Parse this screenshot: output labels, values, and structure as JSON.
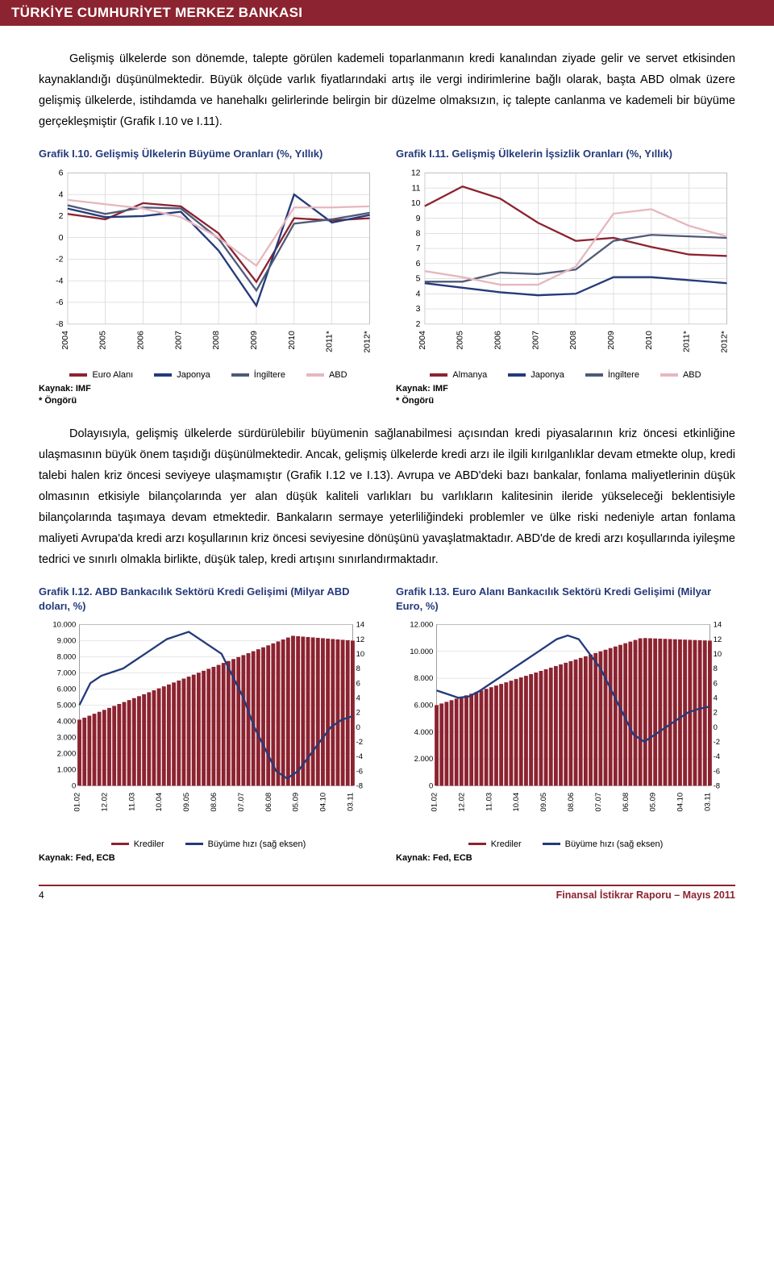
{
  "header": {
    "title": "TÜRKİYE CUMHURİYET MERKEZ BANKASI"
  },
  "paragraphs": {
    "p1": "Gelişmiş ülkelerde son dönemde, talepte görülen kademeli toparlanmanın kredi kanalından ziyade gelir ve servet etkisinden kaynaklandığı düşünülmektedir. Büyük ölçüde varlık fiyatlarındaki artış ile vergi indirimlerine bağlı olarak, başta ABD olmak üzere gelişmiş ülkelerde, istihdamda ve hanehalkı gelirlerinde belirgin bir düzelme olmaksızın, iç talepte canlanma ve kademeli bir büyüme gerçekleşmiştir (Grafik I.10 ve I.11).",
    "p2": "Dolayısıyla, gelişmiş ülkelerde sürdürülebilir büyümenin sağlanabilmesi açısından kredi piyasalarının kriz öncesi etkinliğine ulaşmasının büyük önem taşıdığı düşünülmektedir. Ancak, gelişmiş ülkelerde kredi arzı ile ilgili kırılganlıklar devam etmekte olup, kredi talebi halen kriz öncesi seviyeye ulaşmamıştır (Grafik I.12 ve I.13). Avrupa ve ABD'deki bazı bankalar, fonlama maliyetlerinin düşük olmasının etkisiyle bilançolarında yer alan düşük kaliteli varlıkları bu varlıkların kalitesinin ileride yükseleceği beklentisiyle bilançolarında taşımaya devam etmektedir. Bankaların sermaye yeterliliğindeki problemler ve ülke riski nedeniyle artan fonlama maliyeti Avrupa'da kredi arzı koşullarının kriz öncesi seviyesine dönüşünü yavaşlatmaktadır. ABD'de de kredi arzı koşullarında iyileşme tedrici ve sınırlı olmakla birlikte, düşük talep, kredi artışını sınırlandırmaktadır."
  },
  "chart10": {
    "title": "Grafik I.10. Gelişmiş Ülkelerin Büyüme Oranları (%, Yıllık)",
    "type": "line",
    "x_labels": [
      "2004",
      "2005",
      "2006",
      "2007",
      "2008",
      "2009",
      "2010",
      "2011*",
      "2012*"
    ],
    "ylim": [
      -8,
      6
    ],
    "ytick_step": 2,
    "series": {
      "euro": {
        "label": "Euro Alanı",
        "color": "#8c2330",
        "values": [
          2.2,
          1.7,
          3.2,
          2.9,
          0.4,
          -4.1,
          1.8,
          1.6,
          1.8
        ]
      },
      "japan": {
        "label": "Japonya",
        "color": "#243a7a",
        "values": [
          2.7,
          1.9,
          2.0,
          2.4,
          -1.2,
          -6.3,
          4.0,
          1.4,
          2.1
        ]
      },
      "uk": {
        "label": "İngiltere",
        "color": "#4f5a78",
        "values": [
          3.0,
          2.2,
          2.8,
          2.7,
          -0.1,
          -4.9,
          1.3,
          1.7,
          2.3
        ]
      },
      "usa": {
        "label": "ABD",
        "color": "#e6b7bf",
        "values": [
          3.5,
          3.1,
          2.7,
          1.9,
          0.0,
          -2.6,
          2.8,
          2.8,
          2.9
        ]
      }
    },
    "legend_order": [
      "euro",
      "japan",
      "uk",
      "usa"
    ],
    "source": "Kaynak: IMF",
    "note": "* Öngörü",
    "background_color": "#ffffff",
    "grid_color": "#cfcfcf",
    "axis_fontsize": 10
  },
  "chart11": {
    "title": "Grafik I.11. Gelişmiş Ülkelerin İşsizlik Oranları (%, Yıllık)",
    "type": "line",
    "x_labels": [
      "2004",
      "2005",
      "2006",
      "2007",
      "2008",
      "2009",
      "2010",
      "2011*",
      "2012*"
    ],
    "ylim": [
      2,
      12
    ],
    "ytick_step": 1,
    "series": {
      "germany": {
        "label": "Almanya",
        "color": "#8c2330",
        "values": [
          9.8,
          11.1,
          10.3,
          8.7,
          7.5,
          7.7,
          7.1,
          6.6,
          6.5
        ]
      },
      "japan": {
        "label": "Japonya",
        "color": "#243a7a",
        "values": [
          4.7,
          4.4,
          4.1,
          3.9,
          4.0,
          5.1,
          5.1,
          4.9,
          4.7
        ]
      },
      "uk": {
        "label": "İngiltere",
        "color": "#4f5a78",
        "values": [
          4.8,
          4.8,
          5.4,
          5.3,
          5.6,
          7.5,
          7.9,
          7.8,
          7.7
        ]
      },
      "usa": {
        "label": "ABD",
        "color": "#e6b7bf",
        "values": [
          5.5,
          5.1,
          4.6,
          4.6,
          5.8,
          9.3,
          9.6,
          8.5,
          7.8
        ]
      }
    },
    "legend_order": [
      "germany",
      "japan",
      "uk",
      "usa"
    ],
    "source": "Kaynak: IMF",
    "note": "* Öngörü",
    "background_color": "#ffffff",
    "grid_color": "#cfcfcf",
    "axis_fontsize": 10
  },
  "chart12": {
    "title": "Grafik I.12. ABD Bankacılık Sektörü Kredi Gelişimi (Milyar ABD doları, %)",
    "type": "bar-line",
    "x_labels": [
      "01.02",
      "12.02",
      "11.03",
      "10.04",
      "09.05",
      "08.06",
      "07.07",
      "06.08",
      "05.09",
      "04.10",
      "03.11"
    ],
    "yL": {
      "lim": [
        0,
        10000
      ],
      "ticks": [
        0,
        1000,
        2000,
        3000,
        4000,
        5000,
        6000,
        7000,
        8000,
        9000,
        10000
      ],
      "tick_labels": [
        "0",
        "1.000",
        "2.000",
        "3.000",
        "4.000",
        "5.000",
        "6.000",
        "7.000",
        "8.000",
        "9.000",
        "10.000"
      ]
    },
    "yR": {
      "lim": [
        -8,
        14
      ],
      "ticks": [
        -8,
        -6,
        -4,
        -2,
        0,
        2,
        4,
        6,
        8,
        10,
        12,
        14
      ]
    },
    "bars": {
      "label": "Krediler",
      "color": "#8c2330",
      "n": 56,
      "start": 4100,
      "peak": 9300,
      "peak_at": 0.78,
      "end": 9000
    },
    "line": {
      "label": "Büyüme hızı (sağ eksen)",
      "color": "#243a7a",
      "values": [
        3,
        6,
        7,
        7.5,
        8,
        9,
        10,
        11,
        12,
        12.5,
        13,
        12,
        11,
        10,
        7,
        4,
        0,
        -3,
        -6,
        -7,
        -6,
        -4,
        -2,
        0,
        1,
        1.5
      ]
    },
    "source": "Kaynak: Fed, ECB",
    "background_color": "#ffffff",
    "grid_color": "#cfcfcf",
    "axis_fontsize": 9
  },
  "chart13": {
    "title": "Grafik I.13. Euro Alanı Bankacılık Sektörü Kredi Gelişimi (Milyar Euro, %)",
    "type": "bar-line",
    "x_labels": [
      "01.02",
      "12.02",
      "11.03",
      "10.04",
      "09.05",
      "08.06",
      "07.07",
      "06.08",
      "05.09",
      "04.10",
      "03.11"
    ],
    "yL": {
      "lim": [
        0,
        12000
      ],
      "ticks": [
        0,
        2000,
        4000,
        6000,
        8000,
        10000,
        12000
      ],
      "tick_labels": [
        "0",
        "2.000",
        "4.000",
        "6.000",
        "8.000",
        "10.000",
        "12.000"
      ]
    },
    "yR": {
      "lim": [
        -8,
        14
      ],
      "ticks": [
        -8,
        -6,
        -4,
        -2,
        0,
        2,
        4,
        6,
        8,
        10,
        12,
        14
      ]
    },
    "bars": {
      "label": "Krediler",
      "color": "#8c2330",
      "n": 56,
      "start": 6000,
      "peak": 11000,
      "peak_at": 0.75,
      "end": 10800
    },
    "line": {
      "label": "Büyüme hızı (sağ eksen)",
      "color": "#243a7a",
      "values": [
        5,
        4.5,
        4,
        4.2,
        5,
        6,
        7,
        8,
        9,
        10,
        11,
        12,
        12.5,
        12,
        10,
        8,
        5,
        2,
        -1,
        -2,
        -1,
        0,
        1,
        2,
        2.5,
        2.8
      ]
    },
    "source": "Kaynak: Fed, ECB",
    "background_color": "#ffffff",
    "grid_color": "#cfcfcf",
    "axis_fontsize": 9
  },
  "footer": {
    "page_number": "4",
    "report": "Finansal İstikrar Raporu – Mayıs 2011"
  }
}
